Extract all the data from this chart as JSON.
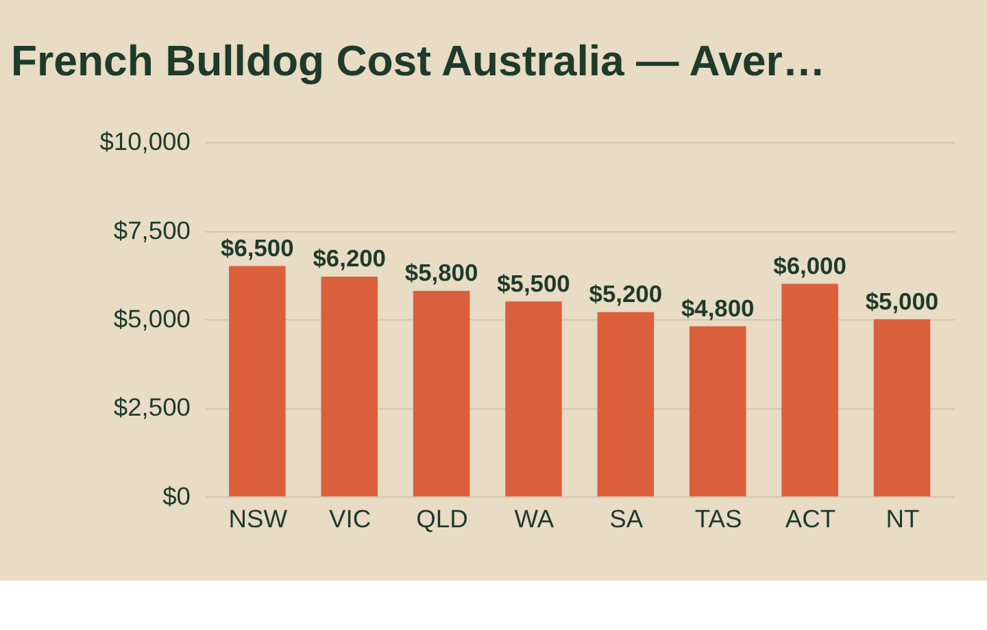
{
  "chart_data": {
    "type": "bar",
    "title": "French Bulldog Cost Australia — Aver…",
    "categories": [
      "NSW",
      "VIC",
      "QLD",
      "WA",
      "SA",
      "TAS",
      "ACT",
      "NT"
    ],
    "values": [
      6500,
      6200,
      5800,
      5500,
      5200,
      4800,
      6000,
      5000
    ],
    "value_labels": [
      "$6,500",
      "$6,200",
      "$5,800",
      "$5,500",
      "$5,200",
      "$4,800",
      "$6,000",
      "$5,000"
    ],
    "color": "#d9603b",
    "ylim": [
      0,
      10000
    ],
    "yticks": [
      {
        "value": 0,
        "label": "$0"
      },
      {
        "value": 2500,
        "label": "$2,500"
      },
      {
        "value": 5000,
        "label": "$5,000"
      },
      {
        "value": 7500,
        "label": "$7,500"
      },
      {
        "value": 10000,
        "label": "$10,000"
      }
    ],
    "grid": "y"
  }
}
